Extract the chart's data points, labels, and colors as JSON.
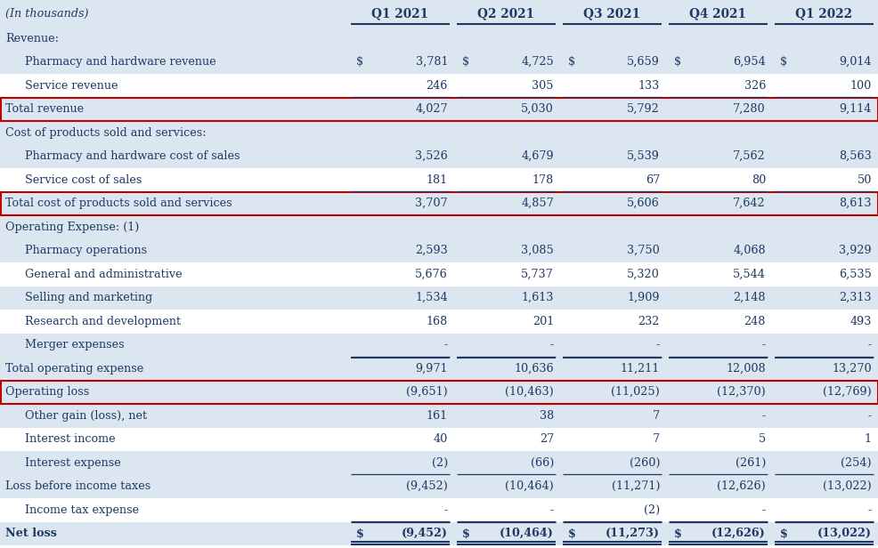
{
  "columns": [
    "Q1 2021",
    "Q2 2021",
    "Q3 2021",
    "Q4 2021",
    "Q1 2022"
  ],
  "rows": [
    {
      "label": "Revenue:",
      "indent": 0,
      "type": "section_header",
      "values": [
        "",
        "",
        "",
        "",
        ""
      ],
      "bold": false,
      "show_dollar": false
    },
    {
      "label": "Pharmacy and hardware revenue",
      "indent": 1,
      "type": "data",
      "values": [
        "3,781",
        "4,725",
        "5,659",
        "6,954",
        "9,014"
      ],
      "bold": false,
      "show_dollar": true
    },
    {
      "label": "Service revenue",
      "indent": 1,
      "type": "data_line_below",
      "values": [
        "246",
        "305",
        "133",
        "326",
        "100"
      ],
      "bold": false,
      "show_dollar": false
    },
    {
      "label": "Total revenue",
      "indent": 0,
      "type": "total_red_box",
      "values": [
        "4,027",
        "5,030",
        "5,792",
        "7,280",
        "9,114"
      ],
      "bold": false,
      "show_dollar": false
    },
    {
      "label": "Cost of products sold and services:",
      "indent": 0,
      "type": "section_header",
      "values": [
        "",
        "",
        "",
        "",
        ""
      ],
      "bold": false,
      "show_dollar": false
    },
    {
      "label": "Pharmacy and hardware cost of sales",
      "indent": 1,
      "type": "data",
      "values": [
        "3,526",
        "4,679",
        "5,539",
        "7,562",
        "8,563"
      ],
      "bold": false,
      "show_dollar": false
    },
    {
      "label": "Service cost of sales",
      "indent": 1,
      "type": "data_line_below",
      "values": [
        "181",
        "178",
        "67",
        "80",
        "50"
      ],
      "bold": false,
      "show_dollar": false
    },
    {
      "label": "Total cost of products sold and services",
      "indent": 0,
      "type": "total_red_box",
      "values": [
        "3,707",
        "4,857",
        "5,606",
        "7,642",
        "8,613"
      ],
      "bold": false,
      "show_dollar": false
    },
    {
      "label": "Operating Expense: (1)",
      "indent": 0,
      "type": "section_header",
      "values": [
        "",
        "",
        "",
        "",
        ""
      ],
      "bold": false,
      "show_dollar": false
    },
    {
      "label": "Pharmacy operations",
      "indent": 1,
      "type": "data",
      "values": [
        "2,593",
        "3,085",
        "3,750",
        "4,068",
        "3,929"
      ],
      "bold": false,
      "show_dollar": false
    },
    {
      "label": "General and administrative",
      "indent": 1,
      "type": "data",
      "values": [
        "5,676",
        "5,737",
        "5,320",
        "5,544",
        "6,535"
      ],
      "bold": false,
      "show_dollar": false
    },
    {
      "label": "Selling and marketing",
      "indent": 1,
      "type": "data",
      "values": [
        "1,534",
        "1,613",
        "1,909",
        "2,148",
        "2,313"
      ],
      "bold": false,
      "show_dollar": false
    },
    {
      "label": "Research and development",
      "indent": 1,
      "type": "data",
      "values": [
        "168",
        "201",
        "232",
        "248",
        "493"
      ],
      "bold": false,
      "show_dollar": false
    },
    {
      "label": "Merger expenses",
      "indent": 1,
      "type": "data_line_below",
      "values": [
        "-",
        "-",
        "-",
        "-",
        "-"
      ],
      "bold": false,
      "show_dollar": false
    },
    {
      "label": "Total operating expense",
      "indent": 0,
      "type": "total_line",
      "values": [
        "9,971",
        "10,636",
        "11,211",
        "12,008",
        "13,270"
      ],
      "bold": false,
      "show_dollar": false
    },
    {
      "label": "Operating loss",
      "indent": 0,
      "type": "total_red_box",
      "values": [
        "(9,651)",
        "(10,463)",
        "(11,025)",
        "(12,370)",
        "(12,769)"
      ],
      "bold": false,
      "show_dollar": false
    },
    {
      "label": "Other gain (loss), net",
      "indent": 1,
      "type": "data",
      "values": [
        "161",
        "38",
        "7",
        "-",
        "-"
      ],
      "bold": false,
      "show_dollar": false
    },
    {
      "label": "Interest income",
      "indent": 1,
      "type": "data",
      "values": [
        "40",
        "27",
        "7",
        "5",
        "1"
      ],
      "bold": false,
      "show_dollar": false
    },
    {
      "label": "Interest expense",
      "indent": 1,
      "type": "data_line_below",
      "values": [
        "(2)",
        "(66)",
        "(260)",
        "(261)",
        "(254)"
      ],
      "bold": false,
      "show_dollar": false
    },
    {
      "label": "Loss before income taxes",
      "indent": 0,
      "type": "subtotal",
      "values": [
        "(9,452)",
        "(10,464)",
        "(11,271)",
        "(12,626)",
        "(13,022)"
      ],
      "bold": false,
      "show_dollar": false
    },
    {
      "label": "Income tax expense",
      "indent": 1,
      "type": "data_line_below",
      "values": [
        "-",
        "-",
        "(2)",
        "-",
        "-"
      ],
      "bold": false,
      "show_dollar": false
    },
    {
      "label": "Net loss",
      "indent": 0,
      "type": "total_double_line",
      "values": [
        "(9,452)",
        "(10,464)",
        "(11,273)",
        "(12,626)",
        "(13,022)"
      ],
      "bold": true,
      "show_dollar": true
    }
  ],
  "row_bg": [
    "#dce6f1",
    "#dce6f1",
    "#ffffff",
    "#dce6f1",
    "#dce6f1",
    "#dce6f1",
    "#ffffff",
    "#dce6f1",
    "#dce6f1",
    "#dce6f1",
    "#ffffff",
    "#dce6f1",
    "#ffffff",
    "#dce6f1",
    "#dce6f1",
    "#dce6f1",
    "#dce6f1",
    "#ffffff",
    "#dce6f1",
    "#dce6f1",
    "#ffffff",
    "#dce6f1"
  ],
  "text_color": "#1f3864",
  "red_box_color": "#c00000",
  "bg_header": "#dce6f1",
  "font_size": 9.2,
  "header_font_size": 9.8
}
